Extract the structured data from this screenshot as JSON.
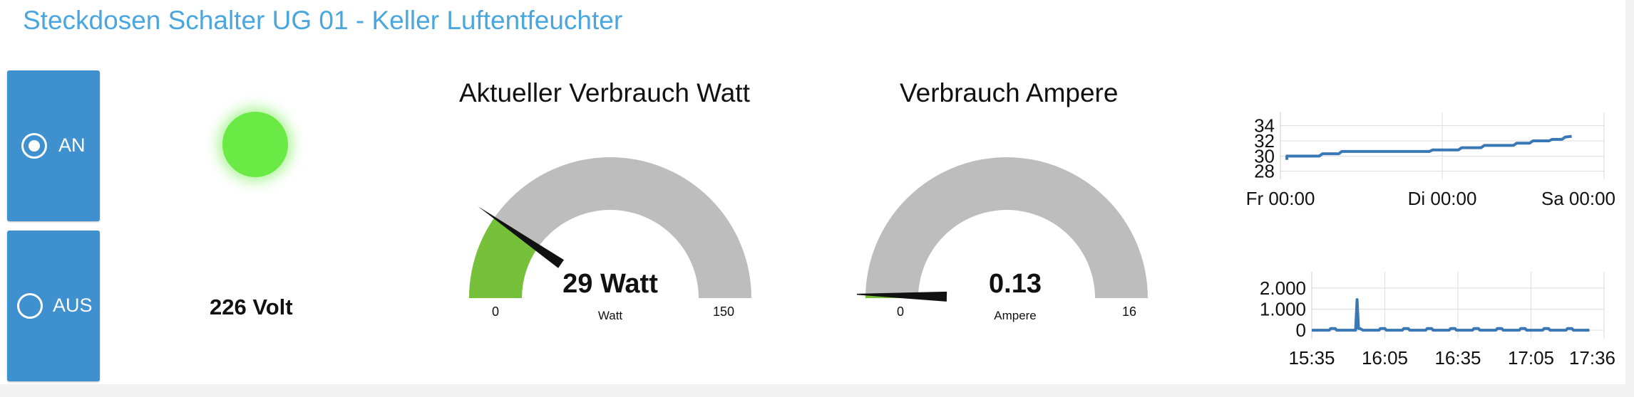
{
  "page": {
    "title": "Steckdosen Schalter UG 01 - Keller Luftentfeuchter"
  },
  "switch": {
    "on_label": "AN",
    "off_label": "AUS",
    "selected": "on"
  },
  "status": {
    "led_color": "#6bea45",
    "voltage_text": "226 Volt"
  },
  "gauges": [
    {
      "title": "Aktueller Verbrauch Watt",
      "value": 29,
      "value_text": "29 Watt",
      "unit": "Watt",
      "min": 0,
      "max": 150,
      "min_label": "0",
      "max_label": "150",
      "fill_color": "#77c13a",
      "track_color": "#bdbdbd"
    },
    {
      "title": "Verbrauch Ampere",
      "value": 0.13,
      "value_text": "0.13",
      "unit": "Ampere",
      "min": 0,
      "max": 16,
      "min_label": "0",
      "max_label": "16",
      "fill_color": "#77c13a",
      "track_color": "#bdbdbd"
    }
  ],
  "chart_data": [
    {
      "type": "line",
      "title": "",
      "xlabel": "",
      "ylabel": "",
      "x_ticks": [
        "Fr 00:00",
        "Di 00:00",
        "Sa 00:00"
      ],
      "y_ticks": [
        "28",
        "30",
        "32",
        "34"
      ],
      "ylim": [
        27.5,
        35
      ],
      "grid": true,
      "line_color": "#3a78b5",
      "series": [
        {
          "x": [
            0.02,
            0.02,
            0.12,
            0.13,
            0.18,
            0.19,
            0.46,
            0.47,
            0.55,
            0.56,
            0.62,
            0.63,
            0.72,
            0.73,
            0.77,
            0.78,
            0.83,
            0.84,
            0.87,
            0.88,
            0.9
          ],
          "values": [
            29.5,
            30.0,
            30.0,
            30.3,
            30.3,
            30.6,
            30.6,
            30.8,
            30.8,
            31.1,
            31.1,
            31.4,
            31.4,
            31.7,
            31.7,
            32.0,
            32.0,
            32.2,
            32.2,
            32.5,
            32.6
          ]
        }
      ]
    },
    {
      "type": "line",
      "title": "",
      "xlabel": "",
      "ylabel": "",
      "x_ticks": [
        "15:35",
        "16:05",
        "16:35",
        "17:05",
        "17:36"
      ],
      "y_ticks": [
        "0",
        "1.000",
        "2.000"
      ],
      "ylim": [
        -200,
        2500
      ],
      "grid": true,
      "line_color": "#3a78b5",
      "series": [
        {
          "x": [
            0.0,
            0.06,
            0.065,
            0.08,
            0.085,
            0.15,
            0.155,
            0.16,
            0.165,
            0.175,
            0.18,
            0.23,
            0.235,
            0.25,
            0.255,
            0.31,
            0.315,
            0.33,
            0.335,
            0.39,
            0.395,
            0.41,
            0.415,
            0.47,
            0.475,
            0.49,
            0.495,
            0.55,
            0.555,
            0.57,
            0.575,
            0.63,
            0.635,
            0.65,
            0.655,
            0.71,
            0.715,
            0.73,
            0.735,
            0.79,
            0.795,
            0.81,
            0.815,
            0.87,
            0.875,
            0.89,
            0.895,
            0.95
          ],
          "values": [
            0,
            0,
            80,
            80,
            0,
            0,
            1450,
            80,
            80,
            0,
            0,
            0,
            80,
            80,
            0,
            0,
            80,
            80,
            0,
            0,
            80,
            80,
            0,
            0,
            80,
            80,
            0,
            0,
            80,
            80,
            0,
            0,
            80,
            80,
            0,
            0,
            80,
            80,
            0,
            0,
            80,
            80,
            0,
            0,
            80,
            80,
            0,
            0
          ]
        }
      ]
    }
  ]
}
